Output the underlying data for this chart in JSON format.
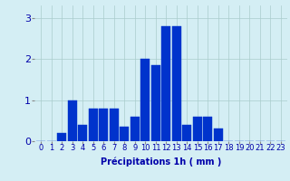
{
  "hours": [
    0,
    1,
    2,
    3,
    4,
    5,
    6,
    7,
    8,
    9,
    10,
    11,
    12,
    13,
    14,
    15,
    16,
    17,
    18,
    19,
    20,
    21,
    22,
    23
  ],
  "values": [
    0,
    0,
    0.2,
    1.0,
    0.4,
    0.8,
    0.8,
    0.8,
    0.35,
    0.6,
    2.0,
    1.85,
    2.8,
    2.8,
    0.4,
    0.6,
    0.6,
    0.3,
    0,
    0,
    0,
    0,
    0,
    0
  ],
  "bar_color": "#0033cc",
  "bar_edge_color": "#0033cc",
  "background_color": "#d4eef4",
  "grid_color": "#aacccc",
  "xlabel": "Précipitations 1h ( mm )",
  "xlabel_fontsize": 7,
  "ylabel_ticks": [
    0,
    1,
    2,
    3
  ],
  "xlim": [
    -0.6,
    23.6
  ],
  "ylim": [
    0,
    3.3
  ],
  "tick_fontsize": 6,
  "ytick_fontsize": 8
}
